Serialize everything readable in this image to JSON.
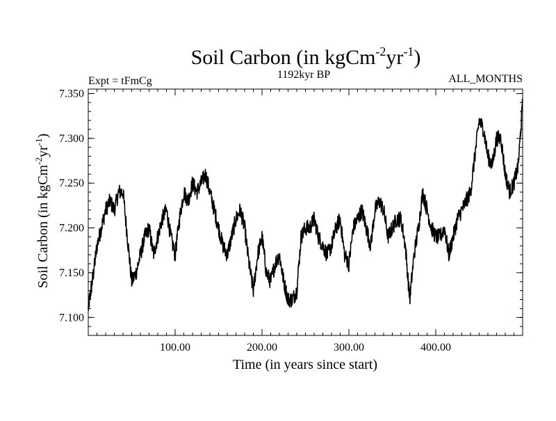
{
  "chart_data": {
    "type": "line",
    "title": {
      "main": "Soil Carbon (in kgCm",
      "sup1": "-2",
      "mid": "yr",
      "sup2": "-1",
      "end": ")"
    },
    "subtitle_left": "Expt = tFmCg",
    "subtitle_center": "1192kyr BP",
    "subtitle_right": "ALL_MONTHS",
    "xlabel": "Time (in years since start)",
    "ylabel": {
      "main": "Soil Carbon (in kgCm",
      "sup1": "-2",
      "mid": "yr",
      "sup2": "-1",
      "end": ")"
    },
    "xlim": [
      0,
      500
    ],
    "ylim": [
      7.08,
      7.355
    ],
    "xticks": [
      100,
      200,
      300,
      400
    ],
    "xtick_labels": [
      "100.00",
      "200.00",
      "300.00",
      "400.00"
    ],
    "yticks": [
      7.1,
      7.15,
      7.2,
      7.25,
      7.3,
      7.35
    ],
    "ytick_labels": [
      "7.100",
      "7.150",
      "7.200",
      "7.250",
      "7.300",
      "7.350"
    ],
    "series": [
      {
        "name": "Soil Carbon",
        "color": "#000000",
        "x": [
          0,
          3,
          6,
          10,
          15,
          20,
          25,
          30,
          35,
          40,
          45,
          50,
          55,
          60,
          65,
          70,
          75,
          80,
          85,
          90,
          95,
          100,
          105,
          110,
          115,
          120,
          125,
          130,
          135,
          140,
          145,
          150,
          155,
          160,
          165,
          170,
          175,
          180,
          185,
          190,
          195,
          200,
          205,
          210,
          215,
          220,
          225,
          230,
          235,
          240,
          245,
          250,
          255,
          260,
          265,
          270,
          275,
          280,
          285,
          290,
          295,
          300,
          305,
          310,
          315,
          320,
          325,
          330,
          335,
          340,
          345,
          350,
          355,
          360,
          365,
          370,
          375,
          380,
          385,
          390,
          395,
          400,
          405,
          410,
          415,
          420,
          425,
          430,
          435,
          440,
          445,
          450,
          455,
          460,
          465,
          470,
          475,
          480,
          485,
          490,
          495,
          500
        ],
        "y": [
          7.11,
          7.13,
          7.15,
          7.18,
          7.2,
          7.22,
          7.23,
          7.22,
          7.24,
          7.24,
          7.19,
          7.14,
          7.15,
          7.17,
          7.19,
          7.2,
          7.17,
          7.19,
          7.21,
          7.22,
          7.19,
          7.17,
          7.21,
          7.24,
          7.23,
          7.25,
          7.24,
          7.25,
          7.26,
          7.24,
          7.22,
          7.2,
          7.18,
          7.17,
          7.19,
          7.21,
          7.22,
          7.2,
          7.16,
          7.13,
          7.17,
          7.19,
          7.15,
          7.14,
          7.16,
          7.17,
          7.14,
          7.12,
          7.12,
          7.13,
          7.19,
          7.2,
          7.2,
          7.21,
          7.19,
          7.18,
          7.17,
          7.18,
          7.2,
          7.21,
          7.17,
          7.16,
          7.2,
          7.21,
          7.22,
          7.2,
          7.18,
          7.22,
          7.23,
          7.22,
          7.19,
          7.2,
          7.21,
          7.21,
          7.18,
          7.12,
          7.17,
          7.2,
          7.24,
          7.22,
          7.2,
          7.19,
          7.19,
          7.2,
          7.17,
          7.19,
          7.21,
          7.22,
          7.23,
          7.24,
          7.28,
          7.32,
          7.31,
          7.28,
          7.27,
          7.3,
          7.3,
          7.26,
          7.24,
          7.25,
          7.27,
          7.34
        ]
      }
    ]
  }
}
